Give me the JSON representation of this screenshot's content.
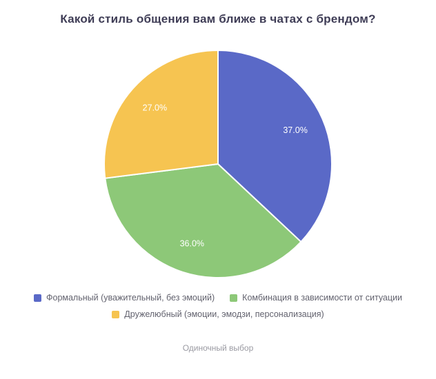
{
  "chart_data": {
    "type": "pie",
    "title": "Какой стиль общения вам ближе в чатах с брендом?",
    "labels": [
      "Формальный (уважительный, без эмоций)",
      "Комбинация в зависимости от ситуации",
      "Дружелюбный (эмоции, эмодзи, персонализация)"
    ],
    "values": [
      37.0,
      36.0,
      27.0
    ],
    "value_labels": [
      "37.0%",
      "36.0%",
      "27.0%"
    ],
    "colors": [
      "#5a69c7",
      "#8dc878",
      "#f6c451"
    ],
    "start_angle_deg": -90,
    "direction": "clockwise",
    "legend_position": "bottom",
    "slice_label_color": "#ffffff",
    "note": "Одиночный выбор"
  }
}
